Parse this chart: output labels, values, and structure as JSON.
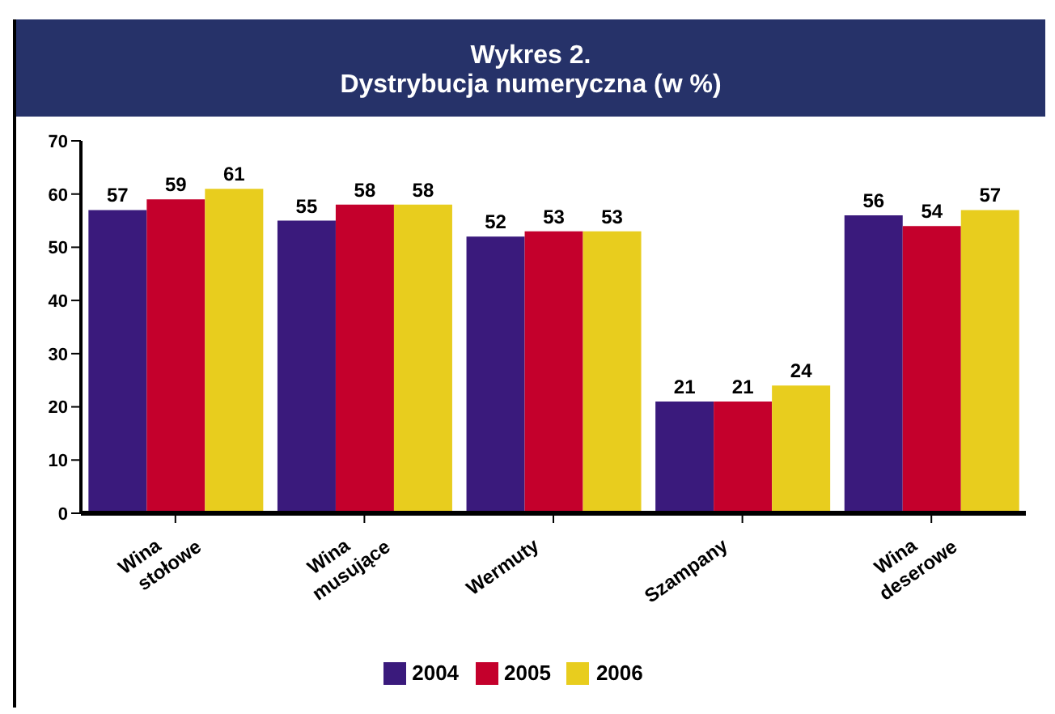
{
  "chart_data": {
    "type": "bar",
    "title": "Wykres 2.",
    "subtitle": "Dystrybucja numeryczna (w %)",
    "categories": [
      "Wina stołowe",
      "Wina musujące",
      "Wermuty",
      "Szampany",
      "Wina deserowe"
    ],
    "series": [
      {
        "name": "2004",
        "color": "#3a1a7c",
        "values": [
          57,
          55,
          52,
          21,
          56
        ]
      },
      {
        "name": "2005",
        "color": "#c4002c",
        "values": [
          59,
          58,
          53,
          21,
          54
        ]
      },
      {
        "name": "2006",
        "color": "#e8cd1e",
        "values": [
          61,
          58,
          53,
          24,
          57
        ]
      }
    ],
    "ylim": [
      0,
      70
    ],
    "yticks": [
      0,
      10,
      20,
      30,
      40,
      50,
      60,
      70
    ],
    "data_labels": true,
    "grid": false,
    "legend": "bottom"
  }
}
